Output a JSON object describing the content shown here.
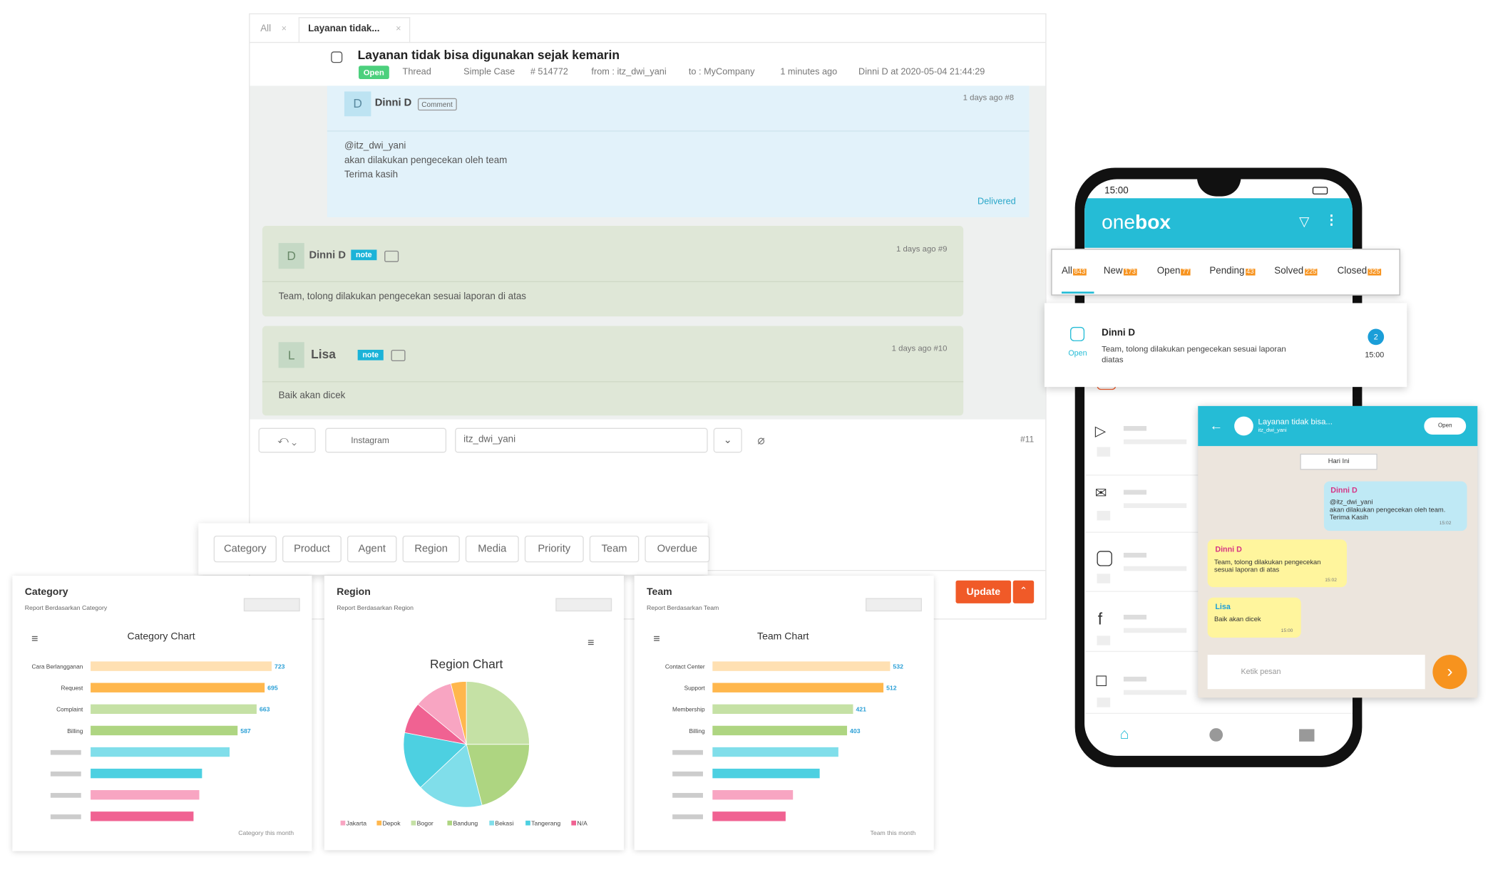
{
  "tabs": [
    "All",
    "Layanan tidak..."
  ],
  "ticket": {
    "title": "Layanan tidak bisa digunakan sejak kemarin",
    "status": "Open",
    "thread": "Thread",
    "case_type": "Simple Case",
    "id": "# 514772",
    "from": "from : itz_dwi_yani",
    "to": "to : MyCompany",
    "time": "1 minutes ago",
    "seen": "Dinni D at 2020-05-04 21:44:29"
  },
  "messages": [
    {
      "avatar": "D",
      "name": "Dinni D",
      "badge": "Comment",
      "time": "1 days ago #8",
      "lines": [
        "@itz_dwi_yani",
        "akan dilakukan pengecekan oleh team",
        "Terima kasih"
      ],
      "status": "Delivered"
    },
    {
      "avatar": "D",
      "name": "Dinni D",
      "badge": "note",
      "time": "1 days ago #9",
      "lines": [
        "Team, tolong dilakukan pengecekan sesuai laporan di atas"
      ]
    },
    {
      "avatar": "L",
      "name": "Lisa",
      "badge": "note",
      "time": "1 days ago #10",
      "lines": [
        "Baik akan dicek"
      ]
    }
  ],
  "reply": {
    "channel": "Instagram",
    "to": "itz_dwi_yani",
    "number": "#11",
    "button": "Update"
  },
  "report_tabs": [
    "Category",
    "Product",
    "Agent",
    "Region",
    "Media",
    "Priority",
    "Team",
    "Overdue"
  ],
  "chart_data": [
    {
      "type": "bar",
      "orientation": "horizontal",
      "title": "Category",
      "subtitle": "Report Berdasarkan Category",
      "chart_title": "Category Chart",
      "categories": [
        "Cara Berlangganan",
        "Request",
        "Complaint",
        "Billing",
        null,
        null,
        null,
        null
      ],
      "values": [
        723,
        695,
        663,
        587,
        555,
        445,
        434,
        411
      ],
      "colors": [
        "#ffe0b2",
        "#ffb74d",
        "#c5e1a5",
        "#aed581",
        "#80deea",
        "#4dd0e1",
        "#f8a5c2",
        "#f06292"
      ],
      "xlim": [
        0,
        800
      ],
      "footer": "Category this month"
    },
    {
      "type": "pie",
      "title": "Region",
      "subtitle": "Report Berdasarkan Region",
      "chart_title": "Region Chart",
      "categories": [
        "Jakarta",
        "Depok",
        "Bogor",
        "Bandung",
        "Bekasi",
        "Tangerang",
        "N/A"
      ],
      "values": [
        10,
        4,
        25,
        21,
        17,
        15,
        8
      ],
      "colors": [
        "#f8a5c2",
        "#ffb74d",
        "#c5e1a5",
        "#aed581",
        "#80deea",
        "#4dd0e1",
        "#f06292"
      ]
    },
    {
      "type": "bar",
      "orientation": "horizontal",
      "title": "Team",
      "subtitle": "Report Berdasarkan Team",
      "chart_title": "Team Chart",
      "categories": [
        "Contact Center",
        "Support",
        "Membership",
        "Billing",
        null,
        null,
        null,
        null
      ],
      "values": [
        532,
        512,
        421,
        403,
        377,
        321,
        241,
        219
      ],
      "colors": [
        "#ffe0b2",
        "#ffb74d",
        "#c5e1a5",
        "#aed581",
        "#80deea",
        "#4dd0e1",
        "#f8a5c2",
        "#f06292"
      ],
      "xlim": [
        0,
        600
      ],
      "footer": "Team this month"
    }
  ],
  "phone": {
    "time": "15:00",
    "brand_one": "one",
    "brand_box": "box",
    "tabs": [
      {
        "name": "All",
        "count": 843
      },
      {
        "name": "New",
        "count": 173
      },
      {
        "name": "Open",
        "count": 77
      },
      {
        "name": "Pending",
        "count": 43
      },
      {
        "name": "Solved",
        "count": 225
      },
      {
        "name": "Closed",
        "count": 325
      }
    ],
    "card": {
      "name": "Dinni D",
      "channel": "Open",
      "text": "Team, tolong dilakukan pengecekan sesuai laporan diatas",
      "unread": 2,
      "time": "15:00"
    },
    "new_label": "New",
    "chat": {
      "title": "Layanan tidak bisa...",
      "subtitle": "itz_dwi_yani",
      "status": "Open",
      "date": "Hari Ini",
      "placeholder": "Ketik pesan",
      "bubbles": [
        {
          "name": "Dinni D",
          "lines": [
            "@itz_dwi_yani",
            "akan dilakukan pengecekan oleh team.",
            "Terima Kasih"
          ],
          "time": "15:02"
        },
        {
          "name": "Dinni D",
          "lines": [
            "Team, tolong dilakukan pengecekan",
            "sesuai laporan di atas"
          ],
          "time": "15:02"
        },
        {
          "name": "Lisa",
          "lines": [
            "Baik akan dicek"
          ],
          "time": "15:00"
        }
      ]
    }
  }
}
